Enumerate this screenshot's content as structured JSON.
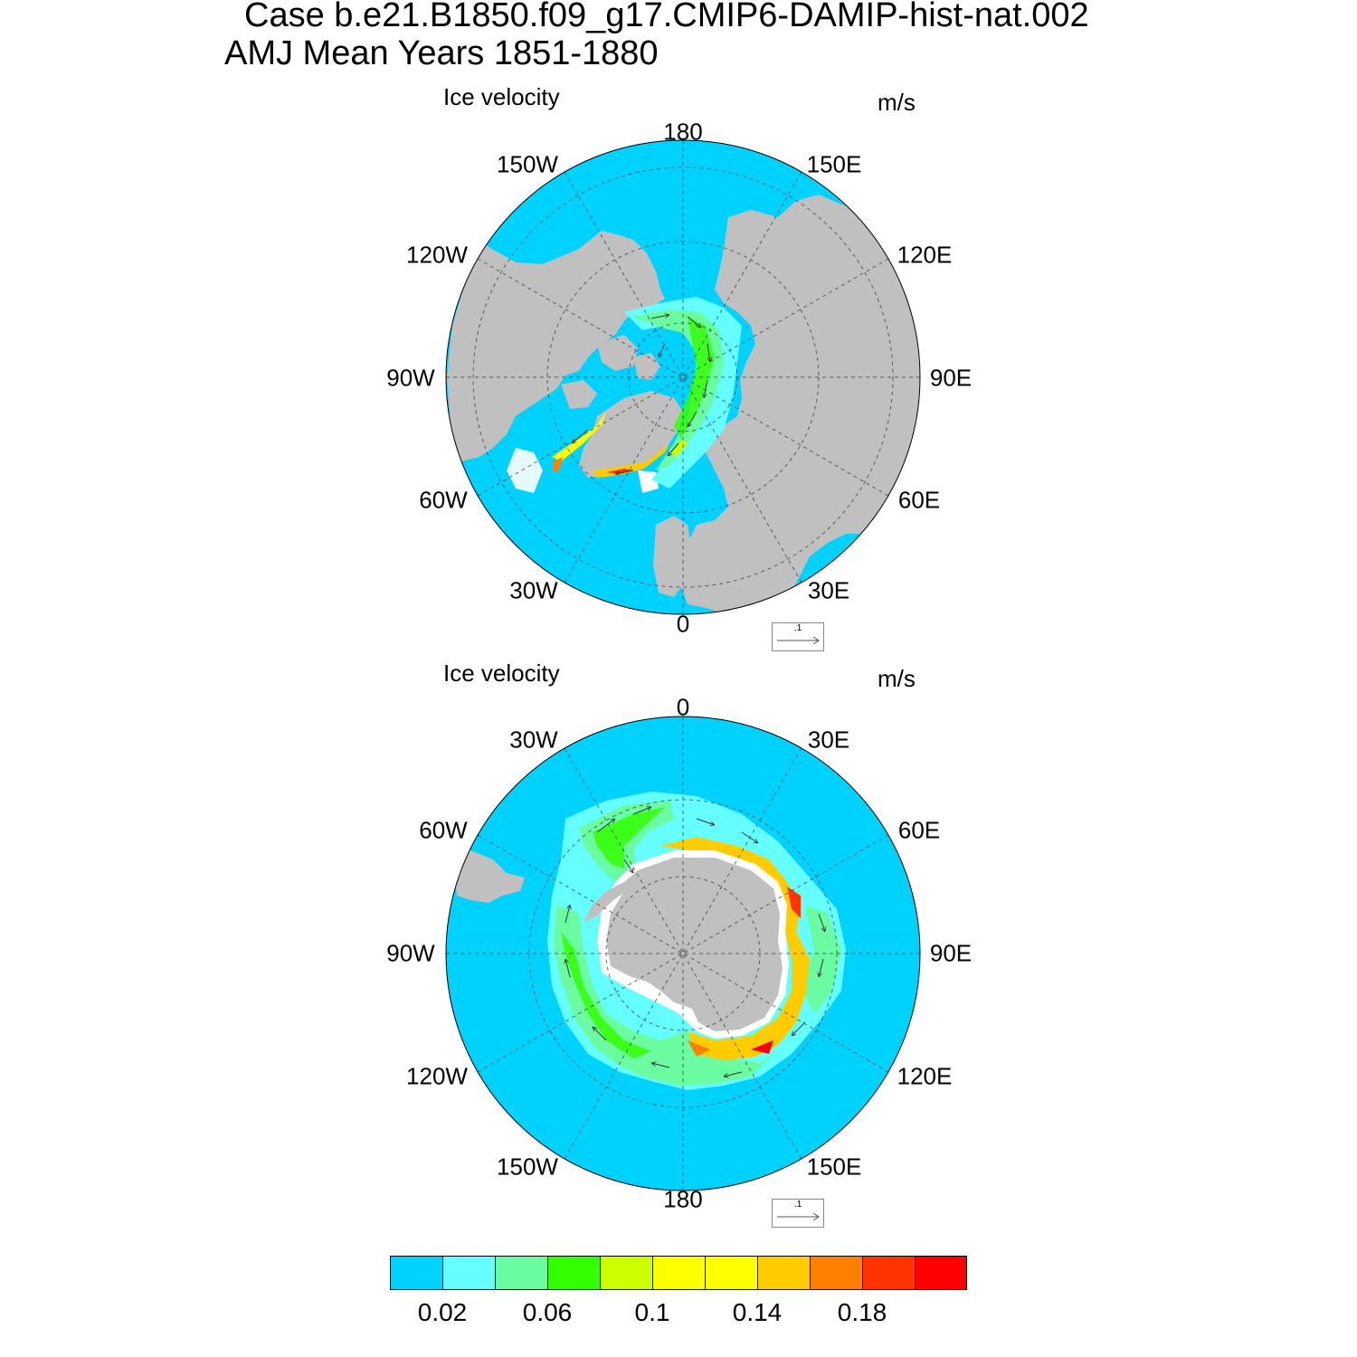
{
  "title": {
    "line1": "Case b.e21.B1850.f09_g17.CMIP6-DAMIP-hist-nat.002",
    "line2": "AMJ Mean   Years 1851-1880"
  },
  "panels": [
    {
      "title": "Ice velocity",
      "units": "m/s",
      "hemisphere": "north",
      "longitude_labels": [
        "180",
        "150E",
        "120E",
        "90E",
        "60E",
        "30E",
        "0",
        "30W",
        "60W",
        "90W",
        "120W",
        "150W"
      ],
      "reference_vector": ".1"
    },
    {
      "title": "Ice velocity",
      "units": "m/s",
      "hemisphere": "south",
      "longitude_labels": [
        "0",
        "30E",
        "60E",
        "90E",
        "120E",
        "150E",
        "180",
        "150W",
        "120W",
        "90W",
        "60W",
        "30W"
      ],
      "reference_vector": ".1"
    }
  ],
  "colorbar": {
    "tick_labels": [
      "0.02",
      "0.06",
      "0.1",
      "0.14",
      "0.18"
    ],
    "colors": [
      "#00d2ff",
      "#66ffff",
      "#6bfba0",
      "#33ff00",
      "#ccff00",
      "#ffff00",
      "#ffff00",
      "#ffcc00",
      "#ff8000",
      "#ff3300",
      "#ff0000"
    ]
  },
  "colors": {
    "ocean": "#00d2ff",
    "land": "#c0c0c0",
    "coast_gap": "#ffffff"
  }
}
